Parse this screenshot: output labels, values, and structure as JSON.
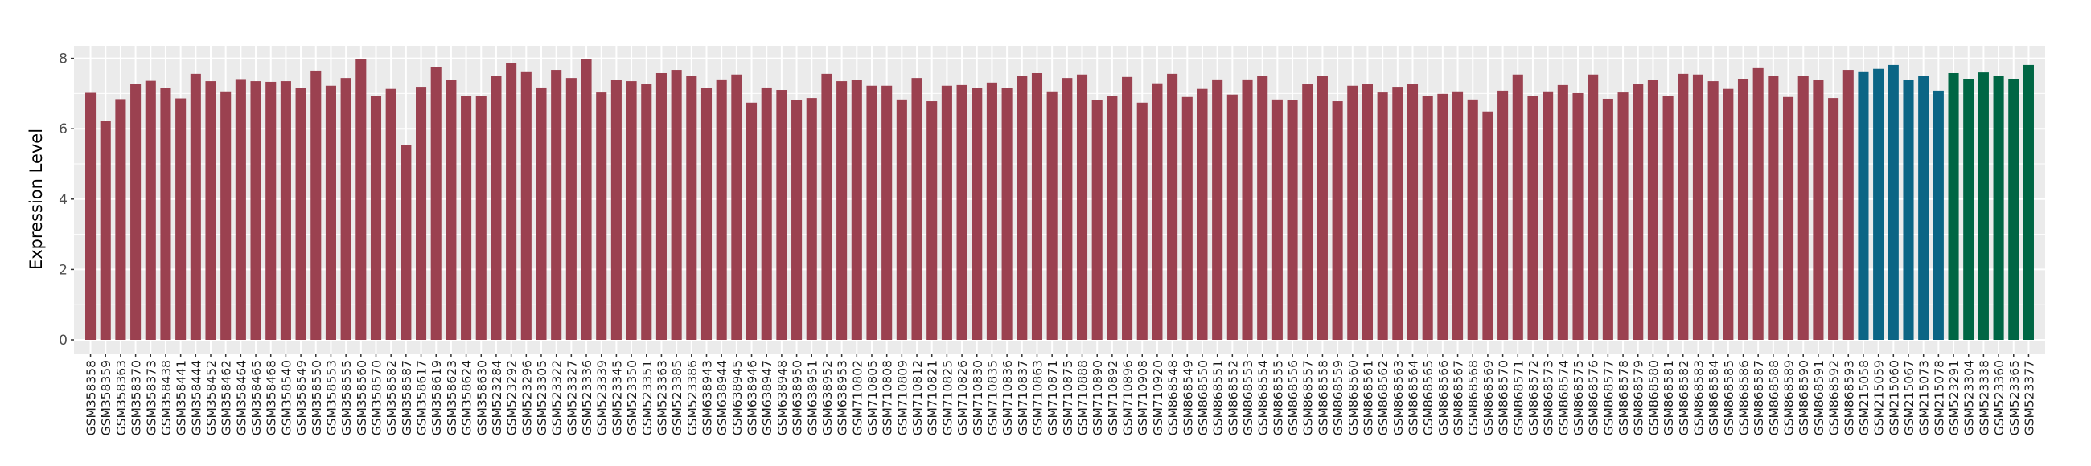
{
  "chart_data": {
    "type": "bar",
    "title": "",
    "xlabel": "",
    "ylabel": "Expression Level",
    "ylim": [
      0,
      8.35
    ],
    "yticks": [
      0,
      2,
      4,
      6,
      8
    ],
    "grid": true,
    "legend": "none",
    "colors": {
      "group1": "#9b4150",
      "group2": "#0b6585",
      "group3": "#006644",
      "panel": "#ebebeb",
      "grid": "#ffffff"
    },
    "categories": [
      "GSM358358",
      "GSM358359",
      "GSM358363",
      "GSM358370",
      "GSM358373",
      "GSM358438",
      "GSM358441",
      "GSM358444",
      "GSM358452",
      "GSM358462",
      "GSM358464",
      "GSM358465",
      "GSM358468",
      "GSM358540",
      "GSM358549",
      "GSM358550",
      "GSM358553",
      "GSM358555",
      "GSM358560",
      "GSM358570",
      "GSM358582",
      "GSM358587",
      "GSM358617",
      "GSM358619",
      "GSM358623",
      "GSM358624",
      "GSM358630",
      "GSM523284",
      "GSM523292",
      "GSM523296",
      "GSM523305",
      "GSM523322",
      "GSM523327",
      "GSM523336",
      "GSM523339",
      "GSM523345",
      "GSM523350",
      "GSM523351",
      "GSM523363",
      "GSM523385",
      "GSM523386",
      "GSM638943",
      "GSM638944",
      "GSM638945",
      "GSM638946",
      "GSM638947",
      "GSM638948",
      "GSM638950",
      "GSM638951",
      "GSM638952",
      "GSM638953",
      "GSM710802",
      "GSM710805",
      "GSM710808",
      "GSM710809",
      "GSM710812",
      "GSM710821",
      "GSM710825",
      "GSM710826",
      "GSM710830",
      "GSM710835",
      "GSM710836",
      "GSM710837",
      "GSM710863",
      "GSM710871",
      "GSM710875",
      "GSM710888",
      "GSM710890",
      "GSM710892",
      "GSM710896",
      "GSM710908",
      "GSM710920",
      "GSM868548",
      "GSM868549",
      "GSM868550",
      "GSM868551",
      "GSM868552",
      "GSM868553",
      "GSM868554",
      "GSM868555",
      "GSM868556",
      "GSM868557",
      "GSM868558",
      "GSM868559",
      "GSM868560",
      "GSM868561",
      "GSM868562",
      "GSM868563",
      "GSM868564",
      "GSM868565",
      "GSM868566",
      "GSM868567",
      "GSM868568",
      "GSM868569",
      "GSM868570",
      "GSM868571",
      "GSM868572",
      "GSM868573",
      "GSM868574",
      "GSM868575",
      "GSM868576",
      "GSM868577",
      "GSM868578",
      "GSM868579",
      "GSM868580",
      "GSM868581",
      "GSM868582",
      "GSM868583",
      "GSM868584",
      "GSM868585",
      "GSM868586",
      "GSM868587",
      "GSM868588",
      "GSM868589",
      "GSM868590",
      "GSM868591",
      "GSM868592",
      "GSM868593",
      "GSM215058",
      "GSM215059",
      "GSM215060",
      "GSM215067",
      "GSM215073",
      "GSM215078",
      "GSM523291",
      "GSM523304",
      "GSM523338",
      "GSM523360",
      "GSM523365",
      "GSM523377"
    ],
    "values": [
      7.02,
      6.23,
      6.84,
      7.27,
      7.36,
      7.16,
      6.86,
      7.56,
      7.35,
      7.06,
      7.41,
      7.35,
      7.33,
      7.35,
      7.15,
      7.65,
      7.22,
      7.44,
      7.97,
      6.92,
      7.13,
      5.53,
      7.19,
      7.76,
      7.38,
      6.94,
      6.94,
      7.51,
      7.86,
      7.63,
      7.17,
      7.67,
      7.44,
      7.97,
      7.03,
      7.38,
      7.35,
      7.26,
      7.58,
      7.67,
      7.51,
      7.15,
      7.4,
      7.54,
      6.74,
      7.17,
      7.1,
      6.81,
      6.87,
      7.56,
      7.35,
      7.38,
      7.22,
      7.22,
      6.83,
      7.44,
      6.78,
      7.22,
      7.24,
      7.15,
      7.31,
      7.15,
      7.49,
      7.58,
      7.06,
      7.44,
      7.54,
      6.81,
      6.94,
      7.47,
      6.74,
      7.29,
      7.56,
      6.9,
      7.13,
      7.4,
      6.97,
      7.4,
      7.51,
      6.83,
      6.81,
      7.26,
      7.49,
      6.78,
      7.22,
      7.26,
      7.03,
      7.19,
      7.26,
      6.94,
      6.99,
      7.06,
      6.83,
      6.49,
      7.08,
      7.54,
      6.92,
      7.06,
      7.24,
      7.01,
      7.54,
      6.85,
      7.03,
      7.26,
      7.38,
      6.94,
      7.56,
      7.54,
      7.35,
      7.13,
      7.42,
      7.72,
      7.49,
      6.9,
      7.49,
      7.38,
      6.87,
      7.67,
      7.63,
      7.7,
      7.81,
      7.38,
      7.49,
      7.08,
      7.58,
      7.42,
      7.6,
      7.51,
      7.42,
      7.81
    ],
    "groups": [
      "group1",
      "group1",
      "group1",
      "group1",
      "group1",
      "group1",
      "group1",
      "group1",
      "group1",
      "group1",
      "group1",
      "group1",
      "group1",
      "group1",
      "group1",
      "group1",
      "group1",
      "group1",
      "group1",
      "group1",
      "group1",
      "group1",
      "group1",
      "group1",
      "group1",
      "group1",
      "group1",
      "group1",
      "group1",
      "group1",
      "group1",
      "group1",
      "group1",
      "group1",
      "group1",
      "group1",
      "group1",
      "group1",
      "group1",
      "group1",
      "group1",
      "group1",
      "group1",
      "group1",
      "group1",
      "group1",
      "group1",
      "group1",
      "group1",
      "group1",
      "group1",
      "group1",
      "group1",
      "group1",
      "group1",
      "group1",
      "group1",
      "group1",
      "group1",
      "group1",
      "group1",
      "group1",
      "group1",
      "group1",
      "group1",
      "group1",
      "group1",
      "group1",
      "group1",
      "group1",
      "group1",
      "group1",
      "group1",
      "group1",
      "group1",
      "group1",
      "group1",
      "group1",
      "group1",
      "group1",
      "group1",
      "group1",
      "group1",
      "group1",
      "group1",
      "group1",
      "group1",
      "group1",
      "group1",
      "group1",
      "group1",
      "group1",
      "group1",
      "group1",
      "group1",
      "group1",
      "group1",
      "group1",
      "group1",
      "group1",
      "group1",
      "group1",
      "group1",
      "group1",
      "group1",
      "group1",
      "group1",
      "group1",
      "group1",
      "group1",
      "group1",
      "group1",
      "group1",
      "group1",
      "group1",
      "group1",
      "group1",
      "group1",
      "group2",
      "group2",
      "group2",
      "group2",
      "group2",
      "group2",
      "group3",
      "group3",
      "group3",
      "group3",
      "group3",
      "group3"
    ]
  }
}
